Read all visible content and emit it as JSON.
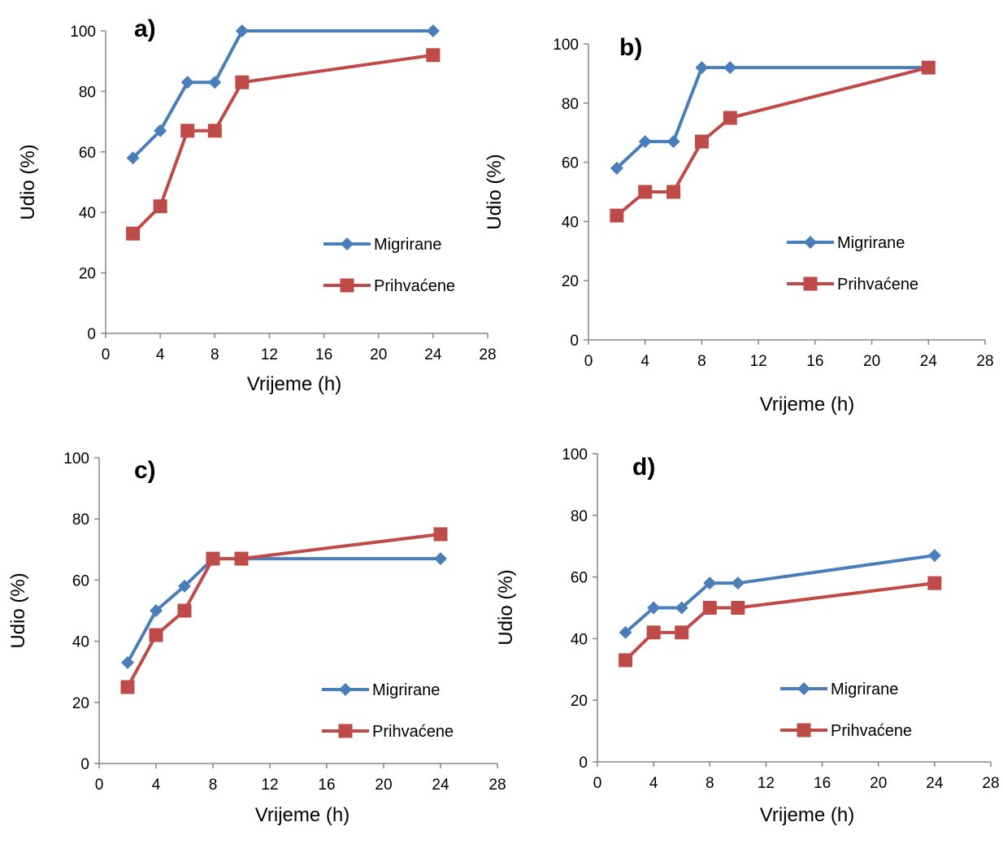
{
  "chart_data": [
    {
      "type": "line",
      "panel_label": "a)",
      "xlabel": "Vrijeme (h)",
      "ylabel": "Udio (%)",
      "xlim": [
        0,
        28
      ],
      "ylim": [
        0,
        100
      ],
      "x_ticks": [
        0,
        4,
        8,
        12,
        16,
        20,
        24,
        28
      ],
      "y_ticks": [
        0,
        20,
        40,
        60,
        80,
        100
      ],
      "grid": false,
      "legend_position": "bottom-right",
      "x": [
        2,
        4,
        6,
        8,
        10,
        24
      ],
      "series": [
        {
          "name": "Migrirane",
          "color": "#4a7ebb",
          "marker": "diamond",
          "values": [
            58,
            67,
            83,
            83,
            100,
            100
          ]
        },
        {
          "name": "Prihvaćene",
          "color": "#be4b48",
          "marker": "square",
          "values": [
            33,
            42,
            67,
            67,
            83,
            92
          ]
        }
      ]
    },
    {
      "type": "line",
      "panel_label": "b)",
      "xlabel": "Vrijeme (h)",
      "ylabel": "Udio (%)",
      "xlim": [
        0,
        28
      ],
      "ylim": [
        0,
        100
      ],
      "x_ticks": [
        0,
        4,
        8,
        12,
        16,
        20,
        24,
        28
      ],
      "y_ticks": [
        0,
        20,
        40,
        60,
        80,
        100
      ],
      "grid": false,
      "legend_position": "bottom-right",
      "x": [
        2,
        4,
        6,
        8,
        10,
        24
      ],
      "series": [
        {
          "name": "Migrirane",
          "color": "#4a7ebb",
          "marker": "diamond",
          "values": [
            58,
            67,
            67,
            92,
            92,
            92
          ]
        },
        {
          "name": "Prihvaćene",
          "color": "#be4b48",
          "marker": "square",
          "values": [
            42,
            50,
            50,
            67,
            75,
            92
          ]
        }
      ]
    },
    {
      "type": "line",
      "panel_label": "c)",
      "xlabel": "Vrijeme (h)",
      "ylabel": "Udio (%)",
      "xlim": [
        0,
        28
      ],
      "ylim": [
        0,
        100
      ],
      "x_ticks": [
        0,
        4,
        8,
        12,
        16,
        20,
        24,
        28
      ],
      "y_ticks": [
        0,
        20,
        40,
        60,
        80,
        100
      ],
      "grid": false,
      "legend_position": "bottom-right",
      "x": [
        2,
        4,
        6,
        8,
        10,
        24
      ],
      "series": [
        {
          "name": "Migrirane",
          "color": "#4a7ebb",
          "marker": "diamond",
          "values": [
            33,
            50,
            58,
            67,
            67,
            67
          ]
        },
        {
          "name": "Prihvaćene",
          "color": "#be4b48",
          "marker": "square",
          "values": [
            25,
            42,
            50,
            67,
            67,
            75
          ]
        }
      ]
    },
    {
      "type": "line",
      "panel_label": "d)",
      "xlabel": "Vrijeme (h)",
      "ylabel": "Udio (%)",
      "xlim": [
        0,
        28
      ],
      "ylim": [
        0,
        100
      ],
      "x_ticks": [
        0,
        4,
        8,
        12,
        16,
        20,
        24,
        28
      ],
      "y_ticks": [
        0,
        20,
        40,
        60,
        80,
        100
      ],
      "grid": false,
      "legend_position": "bottom-right",
      "x": [
        2,
        4,
        6,
        8,
        10,
        24
      ],
      "series": [
        {
          "name": "Migrirane",
          "color": "#4a7ebb",
          "marker": "diamond",
          "values": [
            42,
            50,
            50,
            58,
            58,
            67
          ]
        },
        {
          "name": "Prihvaćene",
          "color": "#be4b48",
          "marker": "square",
          "values": [
            33,
            42,
            42,
            50,
            50,
            58
          ]
        }
      ]
    }
  ]
}
